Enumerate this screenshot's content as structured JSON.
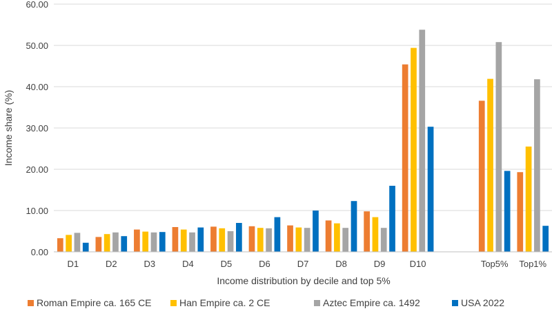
{
  "chart_data": {
    "type": "bar",
    "title": "",
    "xlabel": "Income distribution by decile and top 5%",
    "ylabel": "Income share (%)",
    "ylim": [
      0,
      60
    ],
    "yticks": [
      "0.00",
      "10.00",
      "20.00",
      "30.00",
      "40.00",
      "50.00",
      "60.00"
    ],
    "grid": true,
    "legend_position": "bottom",
    "categories": [
      "D1",
      "D2",
      "D3",
      "D4",
      "D5",
      "D6",
      "D7",
      "D8",
      "D9",
      "D10",
      "",
      "Top5%",
      "Top1%"
    ],
    "series": [
      {
        "name": "Roman Empire ca. 165 CE",
        "color": "#ED7D31",
        "values": [
          3.3,
          3.6,
          5.4,
          6.0,
          6.1,
          6.2,
          6.4,
          7.6,
          9.8,
          45.4,
          null,
          36.6,
          19.3
        ]
      },
      {
        "name": "Han Empire ca. 2 CE",
        "color": "#FFC000",
        "values": [
          4.1,
          4.3,
          4.9,
          5.4,
          5.7,
          5.8,
          5.9,
          6.9,
          8.4,
          49.4,
          null,
          41.9,
          25.5
        ]
      },
      {
        "name": "Aztec Empire ca. 1492",
        "color": "#A5A5A5",
        "values": [
          4.6,
          4.7,
          4.7,
          4.7,
          5.0,
          5.7,
          5.8,
          5.8,
          5.8,
          53.8,
          null,
          50.8,
          41.8
        ]
      },
      {
        "name": "USA 2022",
        "color": "#0070C0",
        "values": [
          2.2,
          3.8,
          4.8,
          5.9,
          7.0,
          8.4,
          10.0,
          12.3,
          16.0,
          30.3,
          null,
          19.6,
          6.3
        ]
      }
    ]
  }
}
